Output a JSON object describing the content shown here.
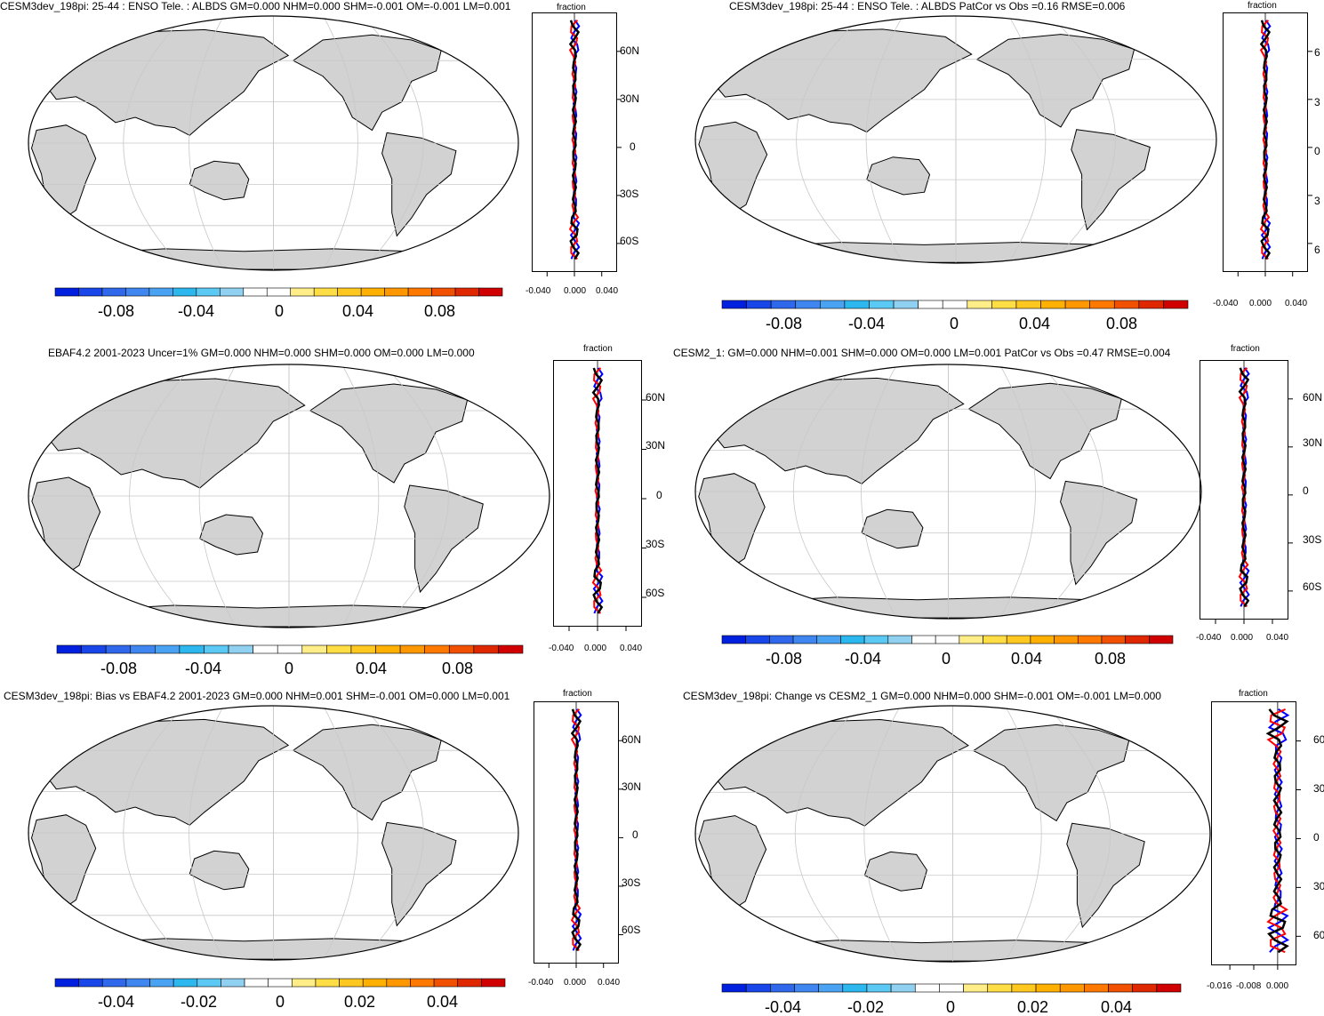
{
  "panels": [
    {
      "id": "p1",
      "title": "CESM3dev_198pi: 25-44 : ENSO Tele. : ALBDS GM=0.000 NHM=0.000 SHM=-0.001 OM=-0.001 LM=0.001",
      "profile_title": "fraction",
      "lat_labels": [
        "60N",
        "30N",
        "0",
        "30S",
        "60S"
      ],
      "x_ticks": [
        "-0.040",
        "0.000",
        "0.040"
      ],
      "colorbar_labels": [
        "-0.08",
        "-0.04",
        "0",
        "0.04",
        "0.08"
      ]
    },
    {
      "id": "p2",
      "title": "CESM3dev_198pi: 25-44 : ENSO Tele. : ALBDS PatCor vs Obs =0.16 RMSE=0.006",
      "profile_title": "fraction",
      "lat_labels": [
        "6",
        "3",
        "0",
        "3",
        "6"
      ],
      "x_ticks": [
        "-0.040",
        "0.000",
        "0.040"
      ],
      "colorbar_labels": [
        "-0.08",
        "-0.04",
        "0",
        "0.04",
        "0.08"
      ]
    },
    {
      "id": "p3",
      "title": "EBAF4.2 2001-2023 Uncer=1% GM=0.000 NHM=0.000 SHM=0.000 OM=0.000 LM=0.000",
      "profile_title": "fraction",
      "lat_labels": [
        "60N",
        "30N",
        "0",
        "30S",
        "60S"
      ],
      "x_ticks": [
        "-0.040",
        "0.000",
        "0.040"
      ],
      "colorbar_labels": [
        "-0.08",
        "-0.04",
        "0",
        "0.04",
        "0.08"
      ]
    },
    {
      "id": "p4",
      "title": "CESM2_1: GM=0.000 NHM=0.001 SHM=0.000 OM=0.000 LM=0.001 PatCor vs Obs =0.47 RMSE=0.004",
      "profile_title": "fraction",
      "lat_labels": [
        "60N",
        "30N",
        "0",
        "30S",
        "60S"
      ],
      "x_ticks": [
        "-0.040",
        "0.000",
        "0.040"
      ],
      "colorbar_labels": [
        "-0.08",
        "-0.04",
        "0",
        "0.04",
        "0.08"
      ]
    },
    {
      "id": "p5",
      "title": "CESM3dev_198pi: Bias vs EBAF4.2 2001-2023 GM=0.000 NHM=0.001 SHM=-0.001 OM=0.000 LM=0.001",
      "profile_title": "fraction",
      "lat_labels": [
        "60N",
        "30N",
        "0",
        "30S",
        "60S"
      ],
      "x_ticks": [
        "-0.040",
        "0.000",
        "0.040"
      ],
      "colorbar_labels": [
        "-0.04",
        "-0.02",
        "0",
        "0.02",
        "0.04"
      ]
    },
    {
      "id": "p6",
      "title": "CESM3dev_198pi: Change vs CESM2_1 GM=0.000 NHM=0.000 SHM=-0.001 OM=-0.001 LM=0.000",
      "profile_title": "fraction",
      "lat_labels": [
        "60",
        "30",
        "0",
        "30",
        "60"
      ],
      "x_ticks": [
        "-0.016",
        "-0.008",
        "0.000"
      ],
      "colorbar_labels": [
        "-0.04",
        "-0.02",
        "0",
        "0.02",
        "0.04"
      ]
    }
  ],
  "colorbar_colors": [
    "#0020e0",
    "#1846e8",
    "#3068ec",
    "#3f86f0",
    "#4aa2f2",
    "#2cb8ee",
    "#5cc8f4",
    "#90d0f0",
    "#ffffff",
    "#ffffff",
    "#ffee88",
    "#ffdd44",
    "#ffc820",
    "#ffb000",
    "#ff9800",
    "#ff7800",
    "#f05000",
    "#e02800",
    "#d00000"
  ],
  "colors": {
    "land": "#d2d2d2",
    "coast": "#000000",
    "grid": "#c8c8c8",
    "series_a": "#0000ff",
    "series_b": "#ff0000",
    "series_c": "#000000"
  }
}
